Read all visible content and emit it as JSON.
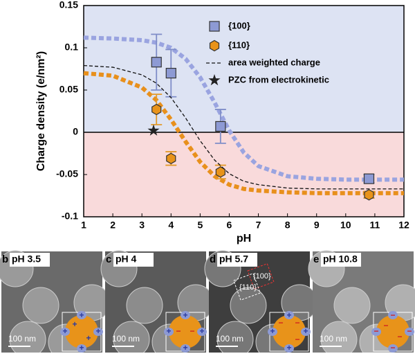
{
  "chart_data": {
    "type": "scatter",
    "xlabel": "pH",
    "ylabel": "Charge density (e/nm²)",
    "xlim": [
      1,
      12
    ],
    "ylim": [
      -0.1,
      0.15
    ],
    "xticks": [
      1,
      2,
      3,
      4,
      5,
      6,
      7,
      8,
      9,
      10,
      11,
      12
    ],
    "yticks": [
      -0.1,
      -0.05,
      0,
      0.05,
      0.1,
      0.15
    ],
    "bands": {
      "positive": "#dde3f3",
      "negative": "#f9dadb"
    },
    "series": [
      {
        "name": "{100}",
        "marker": "square",
        "color": "#8d9ad4",
        "error_color": "#7f8dc8",
        "x": [
          3.5,
          4,
          5.7,
          10.8
        ],
        "values": [
          0.083,
          0.07,
          0.007,
          -0.055
        ],
        "errors": [
          0.033,
          0.028,
          0.02,
          0.005
        ]
      },
      {
        "name": "{110}",
        "marker": "hexagon",
        "color": "#e8931a",
        "error_color": "#e39a2a",
        "x": [
          3.5,
          4,
          5.7,
          10.8
        ],
        "values": [
          0.027,
          -0.031,
          -0.047,
          -0.074
        ],
        "errors": [
          0.018,
          0.008,
          0.008,
          0.004
        ]
      },
      {
        "name": "area weighted charge",
        "marker": "dashed-line",
        "color": "#111111",
        "x": [
          1,
          2,
          3,
          3.5,
          4,
          4.5,
          5,
          5.5,
          6,
          6.5,
          7,
          8,
          9,
          10,
          11,
          12
        ],
        "values": [
          0.079,
          0.077,
          0.068,
          0.058,
          0.041,
          0.017,
          -0.01,
          -0.033,
          -0.049,
          -0.058,
          -0.062,
          -0.066,
          -0.067,
          -0.067,
          -0.067,
          -0.067
        ]
      },
      {
        "name": "PZC from electrokinetic",
        "marker": "star",
        "color": "#222222",
        "x": [
          3.4
        ],
        "values": [
          0.002
        ]
      }
    ],
    "fits": [
      {
        "color": "#9aa4e0",
        "x": [
          1,
          2,
          3,
          3.5,
          4,
          4.5,
          5,
          5.5,
          6,
          6.5,
          7,
          8,
          9,
          10,
          11,
          12
        ],
        "values": [
          0.112,
          0.111,
          0.109,
          0.106,
          0.1,
          0.087,
          0.065,
          0.035,
          0.002,
          -0.024,
          -0.04,
          -0.052,
          -0.055,
          -0.056,
          -0.056,
          -0.056
        ]
      },
      {
        "color": "#e8901c",
        "x": [
          1,
          2,
          3,
          3.5,
          4,
          4.5,
          5,
          5.5,
          6,
          6.5,
          7,
          8,
          9,
          10,
          11,
          12
        ],
        "values": [
          0.07,
          0.067,
          0.053,
          0.038,
          0.015,
          -0.011,
          -0.035,
          -0.052,
          -0.062,
          -0.067,
          -0.069,
          -0.071,
          -0.072,
          -0.072,
          -0.072,
          -0.072
        ]
      }
    ]
  },
  "panels": [
    {
      "letter": "b",
      "label": "pH 3.5",
      "scale": "100 nm"
    },
    {
      "letter": "c",
      "label": "pH 4",
      "scale": "100 nm"
    },
    {
      "letter": "d",
      "label": "pH 5.7",
      "scale": "100 nm",
      "facets": [
        "{100}",
        "{110}"
      ]
    },
    {
      "letter": "e",
      "label": "pH 10.8",
      "scale": "100 nm"
    }
  ]
}
